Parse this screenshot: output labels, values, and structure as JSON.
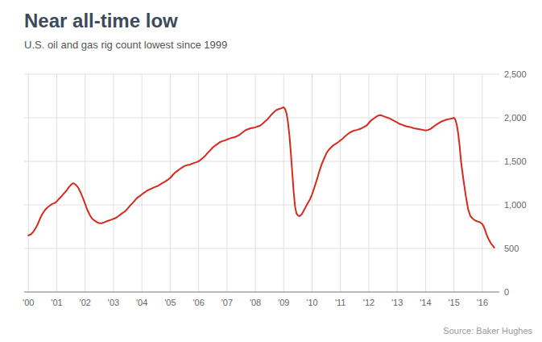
{
  "chart_data": {
    "type": "line",
    "title": "Near all-time low",
    "subtitle": "U.S. oil and gas rig count lowest since 1999",
    "source": "Source: Baker Hughes",
    "color": "#d42b1e",
    "grid": true,
    "xlim": [
      1999.85,
      2016.6
    ],
    "xticks": [
      {
        "value": 2000,
        "label": "'00"
      },
      {
        "value": 2001,
        "label": "'01"
      },
      {
        "value": 2002,
        "label": "'02"
      },
      {
        "value": 2003,
        "label": "'03"
      },
      {
        "value": 2004,
        "label": "'04"
      },
      {
        "value": 2005,
        "label": "'05"
      },
      {
        "value": 2006,
        "label": "'06"
      },
      {
        "value": 2007,
        "label": "'07"
      },
      {
        "value": 2008,
        "label": "'08"
      },
      {
        "value": 2009,
        "label": "'09"
      },
      {
        "value": 2010,
        "label": "'10"
      },
      {
        "value": 2011,
        "label": "'11"
      },
      {
        "value": 2012,
        "label": "'12"
      },
      {
        "value": 2013,
        "label": "'13"
      },
      {
        "value": 2014,
        "label": "'14"
      },
      {
        "value": 2015,
        "label": "'15"
      },
      {
        "value": 2016,
        "label": "'16"
      }
    ],
    "ylim": [
      0,
      2500
    ],
    "yticks": [
      0,
      500,
      {
        "value": 1000,
        "label": "1,000"
      },
      {
        "value": 1500,
        "label": "1,500"
      },
      {
        "value": 2000,
        "label": "2,000"
      },
      {
        "value": 2500,
        "label": "2,500"
      }
    ],
    "x": [
      2000.0,
      2000.08,
      2000.17,
      2000.25,
      2000.33,
      2000.42,
      2000.5,
      2000.58,
      2000.67,
      2000.75,
      2000.83,
      2000.92,
      2001.0,
      2001.08,
      2001.17,
      2001.25,
      2001.33,
      2001.42,
      2001.5,
      2001.58,
      2001.67,
      2001.75,
      2001.83,
      2001.92,
      2002.0,
      2002.08,
      2002.17,
      2002.25,
      2002.33,
      2002.42,
      2002.5,
      2002.58,
      2002.67,
      2002.75,
      2002.83,
      2002.92,
      2003.0,
      2003.08,
      2003.17,
      2003.25,
      2003.33,
      2003.42,
      2003.5,
      2003.58,
      2003.67,
      2003.75,
      2003.83,
      2003.92,
      2004.0,
      2004.08,
      2004.17,
      2004.25,
      2004.33,
      2004.42,
      2004.5,
      2004.58,
      2004.67,
      2004.75,
      2004.83,
      2004.92,
      2005.0,
      2005.08,
      2005.17,
      2005.25,
      2005.33,
      2005.42,
      2005.5,
      2005.58,
      2005.67,
      2005.75,
      2005.83,
      2005.92,
      2006.0,
      2006.08,
      2006.17,
      2006.25,
      2006.33,
      2006.42,
      2006.5,
      2006.58,
      2006.67,
      2006.75,
      2006.83,
      2006.92,
      2007.0,
      2007.08,
      2007.17,
      2007.25,
      2007.33,
      2007.42,
      2007.5,
      2007.58,
      2007.67,
      2007.75,
      2007.83,
      2007.92,
      2008.0,
      2008.08,
      2008.17,
      2008.25,
      2008.33,
      2008.42,
      2008.5,
      2008.58,
      2008.67,
      2008.75,
      2008.83,
      2008.92,
      2009.0,
      2009.05,
      2009.1,
      2009.15,
      2009.2,
      2009.25,
      2009.3,
      2009.35,
      2009.4,
      2009.45,
      2009.5,
      2009.55,
      2009.6,
      2009.65,
      2009.7,
      2009.75,
      2009.83,
      2009.92,
      2010.0,
      2010.08,
      2010.17,
      2010.25,
      2010.33,
      2010.42,
      2010.5,
      2010.58,
      2010.67,
      2010.75,
      2010.83,
      2010.92,
      2011.0,
      2011.08,
      2011.17,
      2011.25,
      2011.33,
      2011.42,
      2011.5,
      2011.58,
      2011.67,
      2011.75,
      2011.83,
      2011.92,
      2012.0,
      2012.08,
      2012.17,
      2012.25,
      2012.33,
      2012.42,
      2012.5,
      2012.58,
      2012.67,
      2012.75,
      2012.83,
      2012.92,
      2013.0,
      2013.08,
      2013.17,
      2013.25,
      2013.33,
      2013.42,
      2013.5,
      2013.58,
      2013.67,
      2013.75,
      2013.83,
      2013.92,
      2014.0,
      2014.08,
      2014.17,
      2014.25,
      2014.33,
      2014.42,
      2014.5,
      2014.58,
      2014.67,
      2014.75,
      2014.83,
      2014.92,
      2015.0,
      2015.05,
      2015.1,
      2015.15,
      2015.2,
      2015.25,
      2015.33,
      2015.42,
      2015.5,
      2015.58,
      2015.67,
      2015.75,
      2015.83,
      2015.92,
      2016.0,
      2016.05,
      2016.1,
      2016.15,
      2016.2,
      2016.25,
      2016.3,
      2016.35,
      2016.4,
      2016.42
    ],
    "values": [
      650,
      660,
      690,
      730,
      780,
      850,
      900,
      940,
      970,
      990,
      1010,
      1020,
      1040,
      1070,
      1100,
      1130,
      1160,
      1200,
      1230,
      1250,
      1230,
      1200,
      1150,
      1080,
      1010,
      940,
      880,
      840,
      820,
      800,
      790,
      790,
      800,
      810,
      820,
      830,
      840,
      850,
      870,
      890,
      910,
      930,
      960,
      990,
      1020,
      1050,
      1080,
      1100,
      1120,
      1140,
      1160,
      1175,
      1185,
      1200,
      1210,
      1220,
      1240,
      1255,
      1270,
      1290,
      1310,
      1340,
      1370,
      1390,
      1410,
      1430,
      1445,
      1455,
      1460,
      1470,
      1480,
      1490,
      1500,
      1520,
      1545,
      1570,
      1600,
      1630,
      1660,
      1680,
      1700,
      1720,
      1730,
      1740,
      1750,
      1760,
      1770,
      1775,
      1785,
      1800,
      1820,
      1840,
      1860,
      1870,
      1880,
      1885,
      1890,
      1900,
      1910,
      1930,
      1955,
      1980,
      2010,
      2040,
      2070,
      2090,
      2100,
      2110,
      2120,
      2100,
      2050,
      1950,
      1800,
      1600,
      1380,
      1150,
      980,
      900,
      880,
      870,
      880,
      900,
      930,
      960,
      1010,
      1060,
      1120,
      1200,
      1290,
      1380,
      1460,
      1530,
      1590,
      1630,
      1660,
      1685,
      1700,
      1720,
      1740,
      1760,
      1790,
      1810,
      1830,
      1845,
      1855,
      1860,
      1870,
      1880,
      1895,
      1910,
      1940,
      1970,
      1990,
      2010,
      2025,
      2030,
      2020,
      2010,
      2000,
      1990,
      1975,
      1960,
      1945,
      1930,
      1920,
      1910,
      1900,
      1895,
      1890,
      1880,
      1875,
      1870,
      1865,
      1860,
      1855,
      1860,
      1870,
      1890,
      1910,
      1930,
      1945,
      1960,
      1970,
      1980,
      1985,
      1990,
      2000,
      1980,
      1920,
      1820,
      1680,
      1500,
      1300,
      1100,
      950,
      870,
      840,
      820,
      810,
      800,
      780,
      750,
      710,
      660,
      620,
      590,
      560,
      540,
      520,
      510
    ]
  }
}
